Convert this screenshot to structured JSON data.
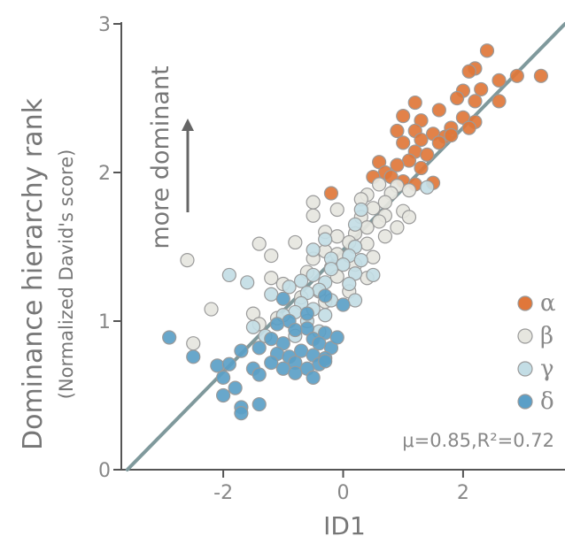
{
  "chart_data": {
    "type": "scatter",
    "title": "",
    "xlabel": "ID1",
    "ylabel": "Dominance hierarchy rank",
    "ylabel_sub": "(Normalized David's score)",
    "annotation_arrow_text": "more dominant",
    "stats_text": "μ=0.85,R²=0.72",
    "xlim": [
      -3.7,
      3.7
    ],
    "ylim": [
      0,
      3
    ],
    "x_ticks": [
      "-2",
      "0",
      "2"
    ],
    "y_ticks": [
      "0",
      "1",
      "2",
      "3"
    ],
    "legend_position": "right",
    "grid": false,
    "fit_line": {
      "x0": -3.6,
      "y0": 0.0,
      "x1": 3.7,
      "y1": 3.02,
      "color": "#7f999c"
    },
    "series": [
      {
        "name": "α",
        "color": "#e0773a",
        "points": [
          [
            2.4,
            2.82
          ],
          [
            3.3,
            2.65
          ],
          [
            2.9,
            2.65
          ],
          [
            2.2,
            2.7
          ],
          [
            2.1,
            2.68
          ],
          [
            2.6,
            2.62
          ],
          [
            2.3,
            2.56
          ],
          [
            2.0,
            2.55
          ],
          [
            1.9,
            2.5
          ],
          [
            2.2,
            2.48
          ],
          [
            2.6,
            2.48
          ],
          [
            1.2,
            2.47
          ],
          [
            1.6,
            2.42
          ],
          [
            1.0,
            2.38
          ],
          [
            1.3,
            2.35
          ],
          [
            2.0,
            2.37
          ],
          [
            2.2,
            2.34
          ],
          [
            1.8,
            2.3
          ],
          [
            2.1,
            2.3
          ],
          [
            1.2,
            2.28
          ],
          [
            0.9,
            2.28
          ],
          [
            1.5,
            2.26
          ],
          [
            1.3,
            2.22
          ],
          [
            1.7,
            2.24
          ],
          [
            1.8,
            2.25
          ],
          [
            1.0,
            2.2
          ],
          [
            1.6,
            2.2
          ],
          [
            1.2,
            2.14
          ],
          [
            1.4,
            2.12
          ],
          [
            1.1,
            2.08
          ],
          [
            0.9,
            2.05
          ],
          [
            0.6,
            2.07
          ],
          [
            1.3,
            2.03
          ],
          [
            0.7,
            2.0
          ],
          [
            0.8,
            1.97
          ],
          [
            0.5,
            1.97
          ],
          [
            1.0,
            1.94
          ],
          [
            1.5,
            1.93
          ],
          [
            1.2,
            1.92
          ],
          [
            -0.2,
            1.86
          ]
        ]
      },
      {
        "name": "β",
        "color": "#e6e6df",
        "points": [
          [
            0.6,
            1.92
          ],
          [
            0.9,
            1.91
          ],
          [
            1.1,
            1.88
          ],
          [
            0.4,
            1.85
          ],
          [
            0.8,
            1.86
          ],
          [
            0.3,
            1.82
          ],
          [
            0.7,
            1.8
          ],
          [
            -0.5,
            1.8
          ],
          [
            0.5,
            1.76
          ],
          [
            -0.1,
            1.75
          ],
          [
            -0.5,
            1.71
          ],
          [
            1.0,
            1.74
          ],
          [
            0.7,
            1.71
          ],
          [
            0.3,
            1.7
          ],
          [
            1.1,
            1.7
          ],
          [
            0.6,
            1.67
          ],
          [
            0.4,
            1.63
          ],
          [
            0.9,
            1.63
          ],
          [
            -0.3,
            1.6
          ],
          [
            0.2,
            1.59
          ],
          [
            -0.1,
            1.57
          ],
          [
            0.7,
            1.57
          ],
          [
            0.1,
            1.53
          ],
          [
            -0.8,
            1.53
          ],
          [
            -1.4,
            1.52
          ],
          [
            0.4,
            1.52
          ],
          [
            -0.3,
            1.47
          ],
          [
            -0.1,
            1.45
          ],
          [
            0.5,
            1.43
          ],
          [
            -2.6,
            1.41
          ],
          [
            -1.2,
            1.44
          ],
          [
            -0.5,
            1.42
          ],
          [
            -0.2,
            1.36
          ],
          [
            0.2,
            1.38
          ],
          [
            -0.6,
            1.33
          ],
          [
            -0.1,
            1.3
          ],
          [
            0.4,
            1.29
          ],
          [
            -1.2,
            1.29
          ],
          [
            -1.0,
            1.25
          ],
          [
            -0.4,
            1.2
          ],
          [
            0.1,
            1.2
          ],
          [
            -0.7,
            1.16
          ],
          [
            -0.3,
            1.13
          ],
          [
            -2.2,
            1.08
          ],
          [
            -1.5,
            1.05
          ],
          [
            -1.1,
            1.02
          ],
          [
            -2.5,
            0.85
          ],
          [
            -1.4,
            0.98
          ]
        ]
      },
      {
        "name": "γ",
        "color": "#c3dde5",
        "points": [
          [
            1.4,
            1.9
          ],
          [
            0.3,
            1.75
          ],
          [
            0.2,
            1.65
          ],
          [
            -0.3,
            1.55
          ],
          [
            0.2,
            1.5
          ],
          [
            -0.5,
            1.48
          ],
          [
            0.1,
            1.44
          ],
          [
            -0.2,
            1.42
          ],
          [
            0.3,
            1.41
          ],
          [
            0.0,
            1.38
          ],
          [
            -0.2,
            1.35
          ],
          [
            0.2,
            1.32
          ],
          [
            0.5,
            1.31
          ],
          [
            -0.5,
            1.31
          ],
          [
            -0.7,
            1.27
          ],
          [
            -0.3,
            1.26
          ],
          [
            0.1,
            1.25
          ],
          [
            -1.6,
            1.26
          ],
          [
            -1.9,
            1.31
          ],
          [
            -0.9,
            1.23
          ],
          [
            -0.4,
            1.21
          ],
          [
            -0.6,
            1.19
          ],
          [
            0.2,
            1.14
          ],
          [
            -0.2,
            1.14
          ],
          [
            -1.2,
            1.18
          ],
          [
            -0.7,
            1.12
          ],
          [
            -0.5,
            1.08
          ],
          [
            -0.8,
            1.06
          ],
          [
            -0.3,
            1.04
          ],
          [
            -1.0,
            1.04
          ],
          [
            -0.6,
            1.0
          ],
          [
            -1.5,
            0.96
          ],
          [
            -0.4,
            0.93
          ],
          [
            -1.3,
            0.9
          ],
          [
            -0.8,
            0.9
          ]
        ]
      },
      {
        "name": "δ",
        "color": "#5b9fc7",
        "points": [
          [
            0.0,
            1.11
          ],
          [
            -0.3,
            1.17
          ],
          [
            -1.0,
            1.15
          ],
          [
            -0.6,
            1.05
          ],
          [
            -0.9,
            1.0
          ],
          [
            -1.1,
            0.98
          ],
          [
            -0.6,
            0.95
          ],
          [
            -0.3,
            0.92
          ],
          [
            -0.8,
            0.94
          ],
          [
            -1.2,
            0.88
          ],
          [
            -0.5,
            0.88
          ],
          [
            -1.0,
            0.85
          ],
          [
            -0.4,
            0.85
          ],
          [
            -1.4,
            0.82
          ],
          [
            -1.7,
            0.8
          ],
          [
            -0.2,
            0.82
          ],
          [
            -2.9,
            0.89
          ],
          [
            -0.7,
            0.8
          ],
          [
            -1.1,
            0.78
          ],
          [
            -0.9,
            0.76
          ],
          [
            -0.5,
            0.77
          ],
          [
            -0.3,
            0.75
          ],
          [
            -1.2,
            0.72
          ],
          [
            -0.8,
            0.72
          ],
          [
            -0.4,
            0.71
          ],
          [
            -2.5,
            0.76
          ],
          [
            -2.1,
            0.7
          ],
          [
            -1.9,
            0.71
          ],
          [
            -1.5,
            0.68
          ],
          [
            -1.0,
            0.68
          ],
          [
            -0.6,
            0.68
          ],
          [
            -0.3,
            0.73
          ],
          [
            -1.4,
            0.64
          ],
          [
            -2.0,
            0.62
          ],
          [
            -0.8,
            0.65
          ],
          [
            -0.5,
            0.62
          ],
          [
            -1.8,
            0.55
          ],
          [
            -2.0,
            0.5
          ],
          [
            -1.7,
            0.42
          ],
          [
            -1.4,
            0.44
          ],
          [
            -0.1,
            0.89
          ],
          [
            -1.7,
            0.38
          ]
        ]
      }
    ]
  }
}
